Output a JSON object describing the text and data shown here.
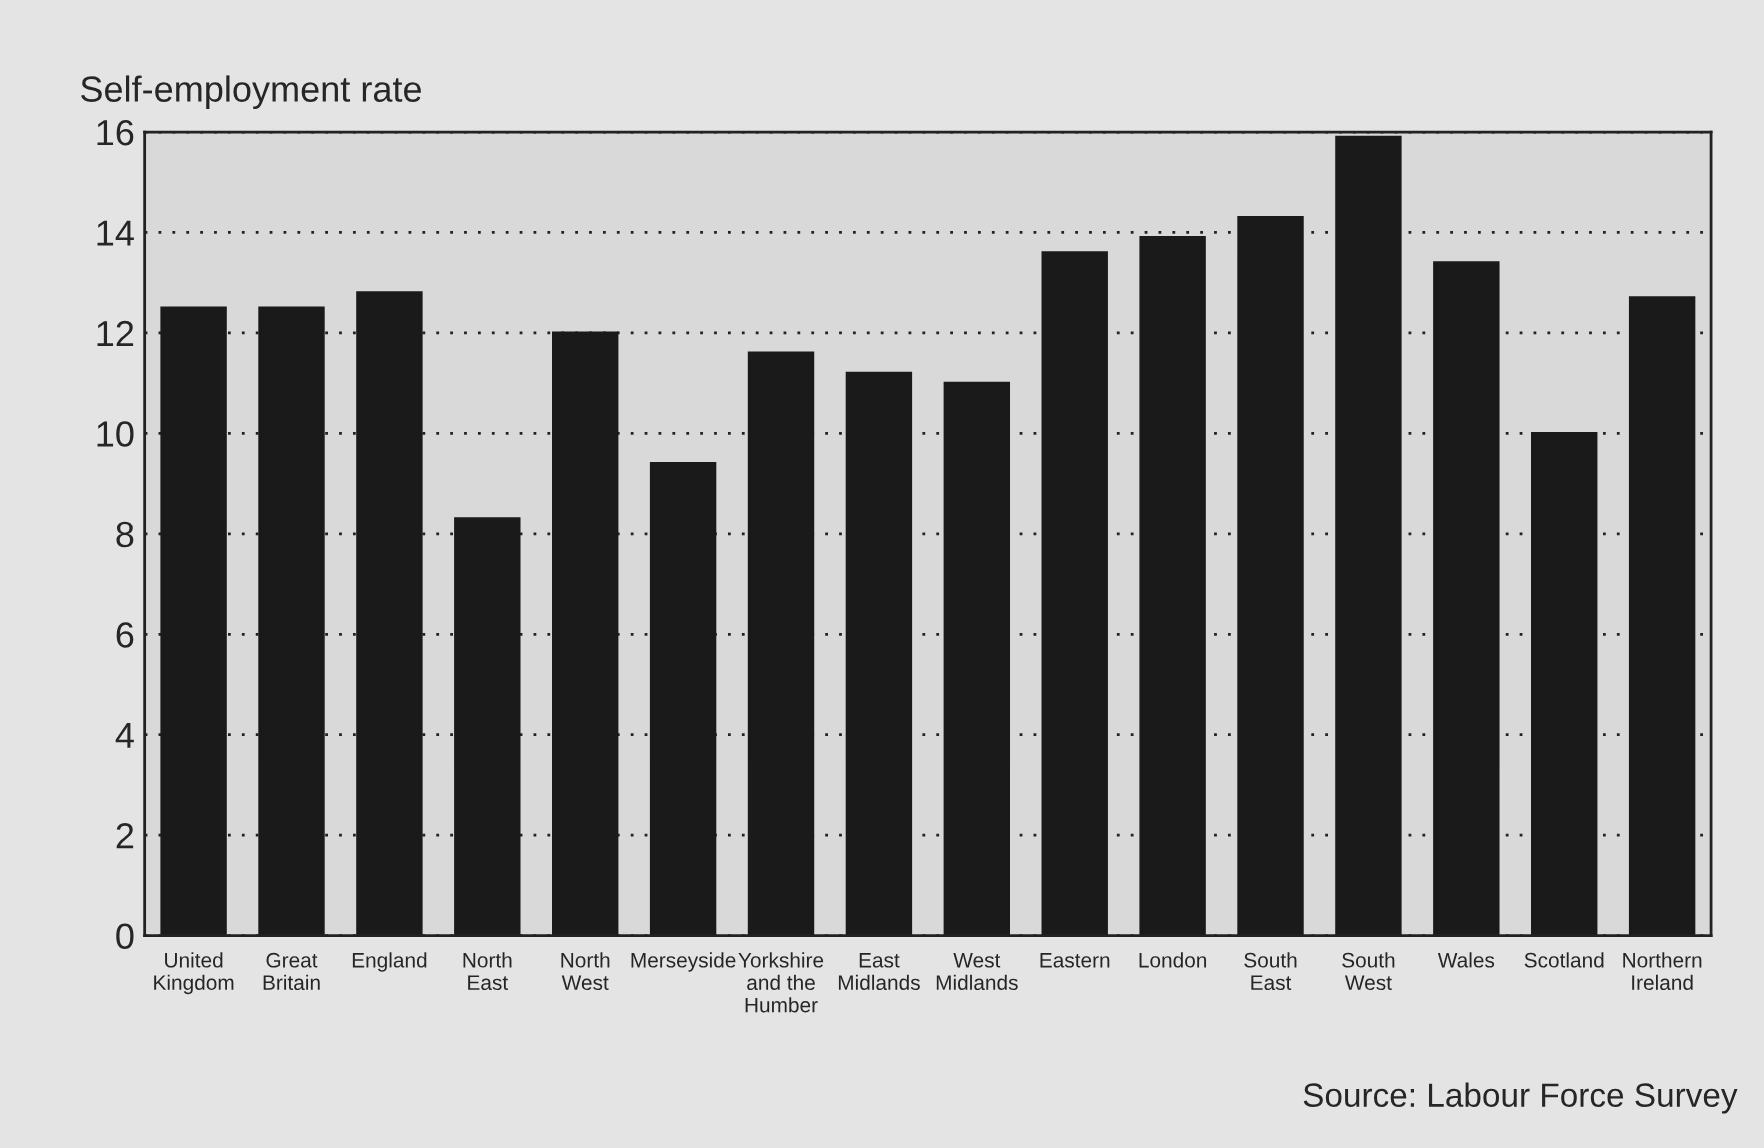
{
  "chart_data": {
    "type": "bar",
    "ylabel": "Self-employment rate",
    "categories": [
      "United\nKingdom",
      "Great\nBritain",
      "England",
      "North\nEast",
      "North\nWest",
      "Merseyside",
      "Yorkshire\nand the\nHumber",
      "East\nMidlands",
      "West\nMidlands",
      "Eastern",
      "London",
      "South\nEast",
      "South\nWest",
      "Wales",
      "Scotland",
      "Northern\nIreland"
    ],
    "values": [
      12.5,
      12.5,
      12.8,
      8.3,
      12.0,
      9.4,
      11.6,
      11.2,
      11.0,
      13.6,
      13.9,
      14.3,
      15.9,
      13.4,
      10.0,
      12.7
    ],
    "color": "#1a1a1a",
    "ylim": [
      0,
      16
    ],
    "yticks": [
      0,
      2,
      4,
      6,
      8,
      10,
      12,
      14,
      16
    ],
    "grid": "y",
    "annotations": [
      "Source: Labour Force Survey"
    ]
  }
}
